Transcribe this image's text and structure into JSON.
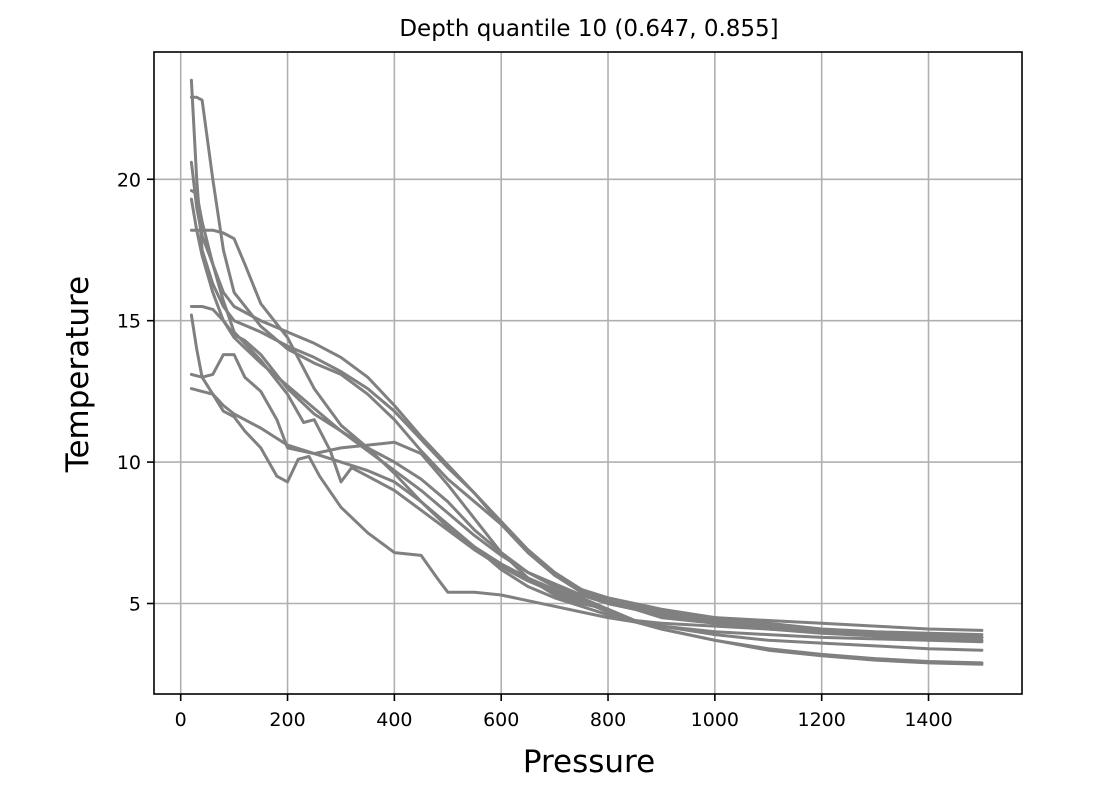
{
  "chart_data": {
    "type": "line",
    "title": "Depth quantile 10 (0.647, 0.855]",
    "xlabel": "Pressure",
    "ylabel": "Temperature",
    "xlim": [
      -50,
      1575
    ],
    "ylim": [
      1.8,
      24.5
    ],
    "xticks": [
      0,
      200,
      400,
      600,
      800,
      1000,
      1200,
      1400
    ],
    "yticks": [
      5,
      10,
      15,
      20
    ],
    "grid": true,
    "series_color": "#808080",
    "series": [
      {
        "x": [
          20,
          30,
          40,
          60,
          80,
          100,
          150,
          200,
          250,
          300,
          350,
          400,
          450,
          500,
          550,
          600,
          650,
          700,
          750,
          800,
          900,
          1000,
          1100,
          1200,
          1300,
          1400,
          1500
        ],
        "y": [
          23.5,
          20.0,
          17.5,
          16.3,
          15.5,
          15.0,
          14.6,
          14.1,
          13.7,
          13.2,
          12.6,
          11.8,
          10.8,
          9.8,
          8.9,
          7.9,
          6.9,
          6.1,
          5.5,
          5.1,
          4.7,
          4.5,
          4.4,
          4.3,
          4.2,
          4.1,
          4.05
        ]
      },
      {
        "x": [
          20,
          30,
          40,
          60,
          80,
          100,
          150,
          200,
          250,
          300,
          350,
          400,
          450,
          500,
          550,
          600,
          650,
          700,
          750,
          800,
          900,
          1000,
          1100,
          1200,
          1300,
          1400,
          1500
        ],
        "y": [
          22.9,
          22.9,
          22.8,
          20.0,
          17.5,
          16.0,
          14.8,
          14.0,
          13.5,
          13.1,
          12.4,
          11.5,
          10.4,
          9.4,
          8.6,
          7.8,
          6.9,
          6.0,
          5.5,
          5.2,
          4.8,
          4.5,
          4.3,
          4.1,
          4.0,
          3.95,
          3.9
        ]
      },
      {
        "x": [
          20,
          30,
          40,
          60,
          80,
          100,
          150,
          200,
          250,
          300,
          350,
          400,
          450,
          500,
          550,
          600,
          650,
          700,
          750,
          800,
          900,
          1000,
          1100,
          1200,
          1300,
          1400,
          1500
        ],
        "y": [
          20.6,
          19.0,
          18.0,
          17.0,
          16.0,
          15.5,
          15.0,
          14.6,
          14.2,
          13.7,
          13.0,
          12.0,
          10.9,
          9.9,
          8.9,
          7.8,
          6.8,
          6.0,
          5.4,
          5.0,
          4.6,
          4.4,
          4.2,
          4.0,
          3.9,
          3.85,
          3.8
        ]
      },
      {
        "x": [
          20,
          30,
          40,
          60,
          80,
          100,
          150,
          200,
          230,
          250,
          280,
          300,
          320,
          350,
          400,
          450,
          500,
          550,
          600,
          650,
          700,
          750,
          800,
          850,
          900,
          1000,
          1100,
          1200,
          1300,
          1400,
          1500
        ],
        "y": [
          19.6,
          19.5,
          18.5,
          17.0,
          15.7,
          14.6,
          13.6,
          12.4,
          11.4,
          11.5,
          10.4,
          9.3,
          9.8,
          9.5,
          9.0,
          8.3,
          7.6,
          6.9,
          6.3,
          5.8,
          5.4,
          5.1,
          4.7,
          4.4,
          4.3,
          4.2,
          4.1,
          4.0,
          3.9,
          3.85,
          3.8
        ]
      },
      {
        "x": [
          20,
          30,
          40,
          60,
          80,
          100,
          150,
          200,
          250,
          300,
          350,
          400,
          450,
          500,
          550,
          600,
          650,
          700,
          750,
          800,
          900,
          1000,
          1100,
          1200,
          1300,
          1400,
          1500
        ],
        "y": [
          19.3,
          18.2,
          17.3,
          16.0,
          15.0,
          14.4,
          13.5,
          12.7,
          11.9,
          11.1,
          10.4,
          9.7,
          9.0,
          8.2,
          7.4,
          6.7,
          6.1,
          5.7,
          5.3,
          5.0,
          4.6,
          4.3,
          4.1,
          3.95,
          3.85,
          3.75,
          3.7
        ]
      },
      {
        "x": [
          20,
          40,
          60,
          80,
          100,
          120,
          150,
          200,
          250,
          300,
          350,
          400,
          450,
          500,
          550,
          600,
          650,
          700,
          750,
          800,
          850,
          900,
          1000,
          1100,
          1200,
          1300,
          1400,
          1500
        ],
        "y": [
          18.2,
          18.2,
          18.2,
          18.1,
          17.9,
          17.0,
          15.6,
          14.4,
          12.6,
          11.3,
          10.5,
          9.6,
          8.6,
          7.7,
          7.0,
          6.4,
          5.9,
          5.5,
          5.2,
          4.8,
          4.4,
          4.2,
          4.0,
          3.9,
          3.8,
          3.75,
          3.7,
          3.65
        ]
      },
      {
        "x": [
          20,
          40,
          60,
          80,
          100,
          120,
          150,
          200,
          250,
          300,
          350,
          400,
          450,
          500,
          550,
          600,
          650,
          700,
          750,
          800,
          850,
          900,
          1000,
          1100,
          1200,
          1300,
          1400,
          1500
        ],
        "y": [
          15.5,
          15.5,
          15.4,
          15.0,
          14.5,
          14.3,
          13.8,
          12.6,
          11.7,
          11.1,
          10.5,
          10.0,
          9.4,
          8.6,
          7.6,
          6.8,
          6.1,
          5.6,
          5.3,
          5.0,
          4.8,
          4.5,
          4.3,
          4.1,
          4.0,
          3.9,
          3.85,
          3.8
        ]
      },
      {
        "x": [
          20,
          30,
          40,
          60,
          80,
          100,
          150,
          200,
          250,
          300,
          350,
          400,
          450,
          500,
          550,
          600,
          650,
          700,
          750,
          800,
          900,
          1000,
          1100,
          1200,
          1300,
          1400,
          1500
        ],
        "y": [
          15.2,
          14.0,
          13.0,
          12.4,
          12.0,
          11.7,
          11.2,
          10.6,
          10.3,
          10.0,
          9.7,
          9.3,
          8.6,
          7.8,
          7.0,
          6.2,
          5.6,
          5.2,
          4.9,
          4.6,
          4.1,
          3.7,
          3.4,
          3.2,
          3.05,
          2.95,
          2.9
        ]
      },
      {
        "x": [
          20,
          40,
          60,
          80,
          100,
          120,
          150,
          180,
          200,
          250,
          300,
          350,
          400,
          450,
          500,
          550,
          600,
          650,
          700,
          750,
          800,
          850,
          900,
          1000,
          1100,
          1200,
          1300,
          1400,
          1500
        ],
        "y": [
          13.1,
          13.0,
          13.1,
          13.8,
          13.8,
          13.0,
          12.5,
          11.5,
          10.5,
          10.3,
          10.5,
          10.6,
          10.7,
          10.3,
          9.2,
          8.0,
          6.8,
          5.9,
          5.3,
          5.0,
          4.8,
          4.4,
          4.1,
          3.7,
          3.35,
          3.15,
          3.0,
          2.9,
          2.85
        ]
      },
      {
        "x": [
          20,
          40,
          60,
          80,
          100,
          120,
          150,
          180,
          200,
          220,
          240,
          260,
          300,
          350,
          400,
          450,
          480,
          500,
          550,
          600,
          650,
          700,
          750,
          800,
          900,
          1000,
          1100,
          1200,
          1300,
          1400,
          1500
        ],
        "y": [
          12.6,
          12.5,
          12.4,
          11.8,
          11.6,
          11.1,
          10.5,
          9.5,
          9.3,
          10.1,
          10.2,
          9.5,
          8.4,
          7.5,
          6.8,
          6.7,
          5.9,
          5.4,
          5.4,
          5.3,
          5.1,
          4.9,
          4.7,
          4.5,
          4.2,
          3.9,
          3.7,
          3.6,
          3.5,
          3.4,
          3.35
        ]
      }
    ]
  }
}
